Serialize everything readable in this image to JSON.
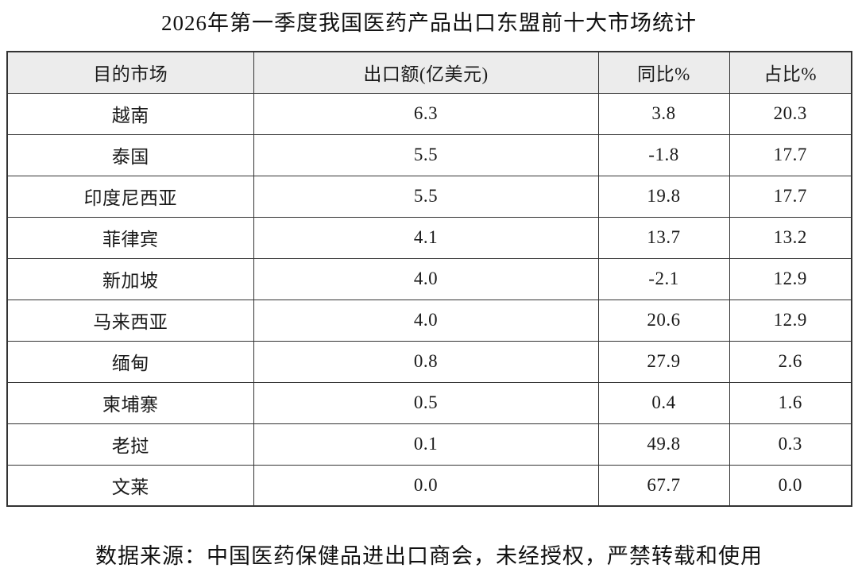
{
  "title": "2026年第一季度我国医药产品出口东盟前十大市场统计",
  "table": {
    "headers": [
      "目的市场",
      "出口额(亿美元)",
      "同比%",
      "占比%"
    ],
    "rows": [
      [
        "越南",
        "6.3",
        "3.8",
        "20.3"
      ],
      [
        "泰国",
        "5.5",
        "-1.8",
        "17.7"
      ],
      [
        "印度尼西亚",
        "5.5",
        "19.8",
        "17.7"
      ],
      [
        "菲律宾",
        "4.1",
        "13.7",
        "13.2"
      ],
      [
        "新加坡",
        "4.0",
        "-2.1",
        "12.9"
      ],
      [
        "马来西亚",
        "4.0",
        "20.6",
        "12.9"
      ],
      [
        "缅甸",
        "0.8",
        "27.9",
        "2.6"
      ],
      [
        "柬埔寨",
        "0.5",
        "0.4",
        "1.6"
      ],
      [
        "老挝",
        "0.1",
        "49.8",
        "0.3"
      ],
      [
        "文莱",
        "0.0",
        "67.7",
        "0.0"
      ]
    ]
  },
  "footer": "数据来源：中国医药保健品进出口商会，未经授权，严禁转载和使用",
  "colors": {
    "header_background": "#ececec",
    "border": "#333333",
    "text": "#1a1a1a",
    "page_background": "#ffffff"
  },
  "chart_data": {
    "type": "table",
    "title": "2026年第一季度我国医药产品出口东盟前十大市场统计",
    "columns": [
      "目的市场",
      "出口额(亿美元)",
      "同比%",
      "占比%"
    ],
    "rows": [
      {
        "market": "越南",
        "export_value_100m_usd": 6.3,
        "yoy_percent": 3.8,
        "share_percent": 20.3
      },
      {
        "market": "泰国",
        "export_value_100m_usd": 5.5,
        "yoy_percent": -1.8,
        "share_percent": 17.7
      },
      {
        "market": "印度尼西亚",
        "export_value_100m_usd": 5.5,
        "yoy_percent": 19.8,
        "share_percent": 17.7
      },
      {
        "market": "菲律宾",
        "export_value_100m_usd": 4.1,
        "yoy_percent": 13.7,
        "share_percent": 13.2
      },
      {
        "market": "新加坡",
        "export_value_100m_usd": 4.0,
        "yoy_percent": -2.1,
        "share_percent": 12.9
      },
      {
        "market": "马来西亚",
        "export_value_100m_usd": 4.0,
        "yoy_percent": 20.6,
        "share_percent": 12.9
      },
      {
        "market": "缅甸",
        "export_value_100m_usd": 0.8,
        "yoy_percent": 27.9,
        "share_percent": 2.6
      },
      {
        "market": "柬埔寨",
        "export_value_100m_usd": 0.5,
        "yoy_percent": 0.4,
        "share_percent": 1.6
      },
      {
        "market": "老挝",
        "export_value_100m_usd": 0.1,
        "yoy_percent": 49.8,
        "share_percent": 0.3
      },
      {
        "market": "文莱",
        "export_value_100m_usd": 0.0,
        "yoy_percent": 67.7,
        "share_percent": 0.0
      }
    ],
    "source_note": "数据来源：中国医药保健品进出口商会，未经授权，严禁转载和使用"
  }
}
